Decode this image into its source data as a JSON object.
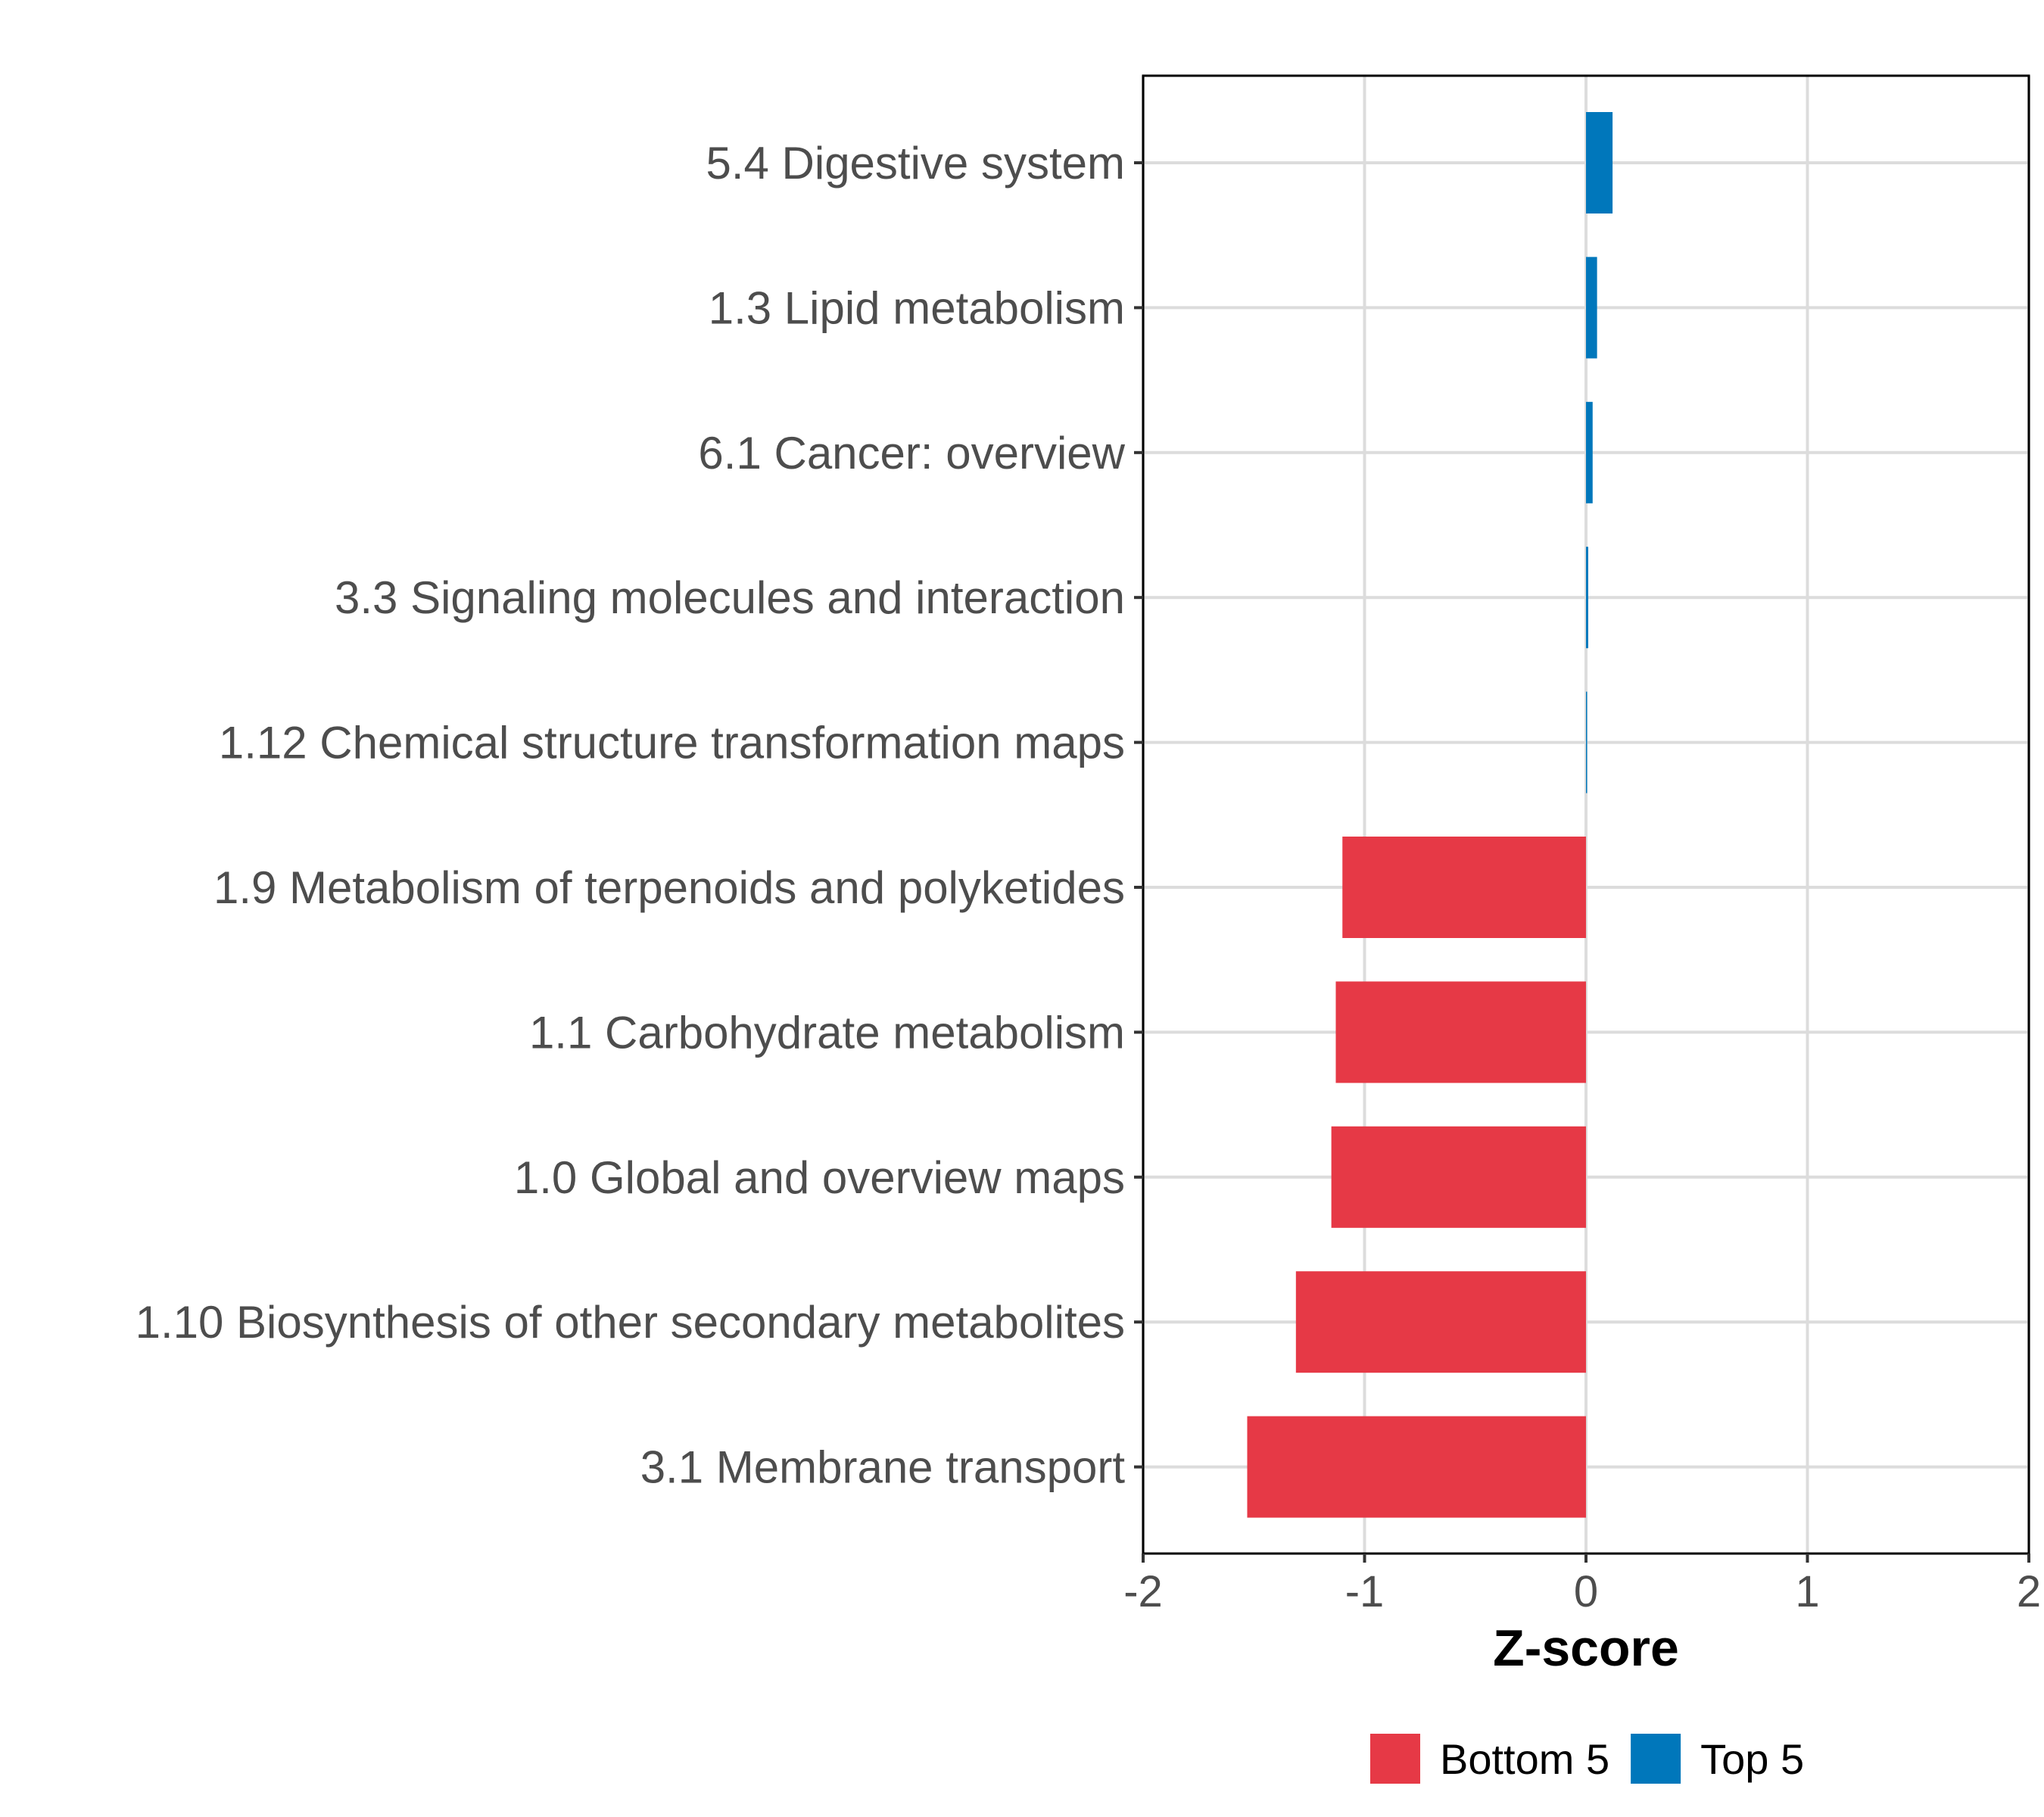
{
  "chart_data": {
    "type": "bar",
    "orientation": "horizontal",
    "categories": [
      "5.4 Digestive system",
      "1.3 Lipid metabolism",
      "6.1 Cancer: overview",
      "3.3 Signaling molecules and interaction",
      "1.12 Chemical structure transformation maps",
      "1.9 Metabolism of terpenoids and polyketides",
      "1.1 Carbohydrate metabolism",
      "1.0 Global and overview maps",
      "1.10 Biosynthesis of other secondary metabolites",
      "3.1 Membrane transport"
    ],
    "values": [
      0.12,
      0.05,
      0.03,
      0.01,
      0.003,
      -1.1,
      -1.13,
      -1.15,
      -1.31,
      -1.53
    ],
    "groups": [
      "Top 5",
      "Top 5",
      "Top 5",
      "Top 5",
      "Top 5",
      "Bottom 5",
      "Bottom 5",
      "Bottom 5",
      "Bottom 5",
      "Bottom 5"
    ],
    "xlabel": "Z-score",
    "ylabel": "",
    "xlim": [
      -2,
      2
    ],
    "xticks": [
      -2,
      -1,
      0,
      1,
      2
    ],
    "xtick_labels": [
      "-2",
      "-1",
      "0",
      "1",
      "2"
    ],
    "grid": true,
    "legend": {
      "position": "bottom",
      "items": [
        {
          "label": "Bottom 5",
          "color": "#e63946"
        },
        {
          "label": "Top 5",
          "color": "#0077bb"
        }
      ]
    }
  }
}
